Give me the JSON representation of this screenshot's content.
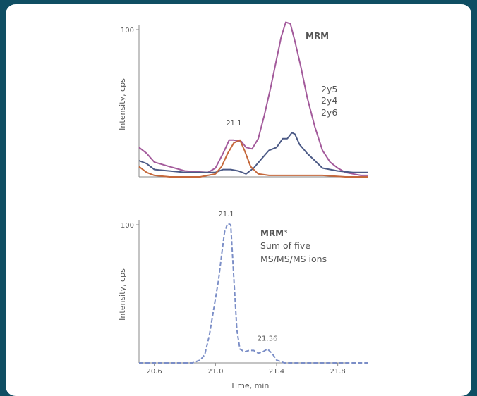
{
  "colors": {
    "frame": "#0f4e63",
    "panel": "#ffffff",
    "axis": "#888888",
    "text": "#555555",
    "series_2y5": "#a35a9b",
    "series_2y4": "#4c5a86",
    "series_2y6": "#c5683b",
    "series_mrm3": "#7b8ec7"
  },
  "chart_data": [
    {
      "type": "line",
      "label": "MRM",
      "ylabel": "Intensity, cps",
      "xlabel": "",
      "xlim": [
        20.5,
        22.0
      ],
      "ylim": [
        0,
        100
      ],
      "yticks": [
        100
      ],
      "xticks": [],
      "legend": [
        "2y5",
        "2y4",
        "2y6"
      ],
      "annotations": [
        {
          "text": "21.1",
          "x": 21.12,
          "y": 33
        }
      ],
      "series": [
        {
          "name": "2y5",
          "color": "#a35a9b",
          "dash": "",
          "points": [
            [
              20.5,
              20
            ],
            [
              20.55,
              16
            ],
            [
              20.6,
              10
            ],
            [
              20.7,
              7
            ],
            [
              20.8,
              4
            ],
            [
              20.95,
              3
            ],
            [
              21.0,
              6
            ],
            [
              21.05,
              16
            ],
            [
              21.09,
              25
            ],
            [
              21.12,
              25
            ],
            [
              21.17,
              24
            ],
            [
              21.2,
              20
            ],
            [
              21.24,
              19
            ],
            [
              21.28,
              26
            ],
            [
              21.32,
              42
            ],
            [
              21.36,
              60
            ],
            [
              21.4,
              80
            ],
            [
              21.43,
              95
            ],
            [
              21.46,
              105
            ],
            [
              21.49,
              104
            ],
            [
              21.52,
              92
            ],
            [
              21.56,
              74
            ],
            [
              21.6,
              54
            ],
            [
              21.65,
              34
            ],
            [
              21.7,
              18
            ],
            [
              21.75,
              10
            ],
            [
              21.8,
              6
            ],
            [
              21.85,
              3
            ],
            [
              21.9,
              2
            ],
            [
              21.95,
              1
            ],
            [
              22.0,
              1
            ]
          ]
        },
        {
          "name": "2y4",
          "color": "#4c5a86",
          "dash": "",
          "points": [
            [
              20.5,
              11
            ],
            [
              20.55,
              9
            ],
            [
              20.6,
              5
            ],
            [
              20.7,
              4
            ],
            [
              20.8,
              3
            ],
            [
              20.95,
              3
            ],
            [
              21.0,
              3
            ],
            [
              21.05,
              5
            ],
            [
              21.1,
              5
            ],
            [
              21.15,
              4
            ],
            [
              21.2,
              2
            ],
            [
              21.25,
              6
            ],
            [
              21.3,
              12
            ],
            [
              21.35,
              18
            ],
            [
              21.4,
              20
            ],
            [
              21.44,
              26
            ],
            [
              21.47,
              26
            ],
            [
              21.5,
              30
            ],
            [
              21.52,
              29
            ],
            [
              21.55,
              22
            ],
            [
              21.6,
              16
            ],
            [
              21.65,
              11
            ],
            [
              21.7,
              6
            ],
            [
              21.8,
              4
            ],
            [
              21.9,
              3
            ],
            [
              22.0,
              3
            ]
          ]
        },
        {
          "name": "2y6",
          "color": "#c5683b",
          "dash": "",
          "points": [
            [
              20.5,
              7
            ],
            [
              20.55,
              3
            ],
            [
              20.6,
              1
            ],
            [
              20.7,
              0
            ],
            [
              20.8,
              0
            ],
            [
              20.9,
              0
            ],
            [
              20.95,
              1
            ],
            [
              21.0,
              2
            ],
            [
              21.04,
              7
            ],
            [
              21.08,
              16
            ],
            [
              21.12,
              23
            ],
            [
              21.16,
              25
            ],
            [
              21.19,
              18
            ],
            [
              21.23,
              7
            ],
            [
              21.28,
              2
            ],
            [
              21.35,
              1
            ],
            [
              21.5,
              1
            ],
            [
              21.7,
              1
            ],
            [
              21.85,
              0
            ],
            [
              22.0,
              0
            ]
          ]
        }
      ]
    },
    {
      "type": "line",
      "label": "MRM³",
      "label_lines": [
        "Sum of five",
        "MS/MS/MS ions"
      ],
      "ylabel": "Intensity, cps",
      "xlabel": "Time, min",
      "xlim": [
        20.5,
        22.0
      ],
      "ylim": [
        0,
        100
      ],
      "yticks": [
        100
      ],
      "xticks": [
        20.6,
        21.0,
        21.4,
        21.8
      ],
      "annotations": [
        {
          "text": "21.1",
          "x": 21.07,
          "y": 104
        },
        {
          "text": "21.36",
          "x": 21.34,
          "y": 14
        }
      ],
      "series": [
        {
          "name": "",
          "color": "#7b8ec7",
          "dash": "6,3",
          "points": [
            [
              20.5,
              0
            ],
            [
              20.7,
              0
            ],
            [
              20.85,
              0
            ],
            [
              20.9,
              2
            ],
            [
              20.93,
              6
            ],
            [
              20.96,
              20
            ],
            [
              20.99,
              40
            ],
            [
              21.02,
              60
            ],
            [
              21.04,
              78
            ],
            [
              21.06,
              95
            ],
            [
              21.08,
              101
            ],
            [
              21.1,
              100
            ],
            [
              21.12,
              62
            ],
            [
              21.14,
              24
            ],
            [
              21.16,
              10
            ],
            [
              21.19,
              8
            ],
            [
              21.22,
              9
            ],
            [
              21.25,
              9
            ],
            [
              21.28,
              7
            ],
            [
              21.31,
              8
            ],
            [
              21.34,
              10
            ],
            [
              21.37,
              7
            ],
            [
              21.4,
              2
            ],
            [
              21.45,
              0
            ],
            [
              21.6,
              0
            ],
            [
              22.0,
              0
            ]
          ]
        }
      ]
    }
  ]
}
